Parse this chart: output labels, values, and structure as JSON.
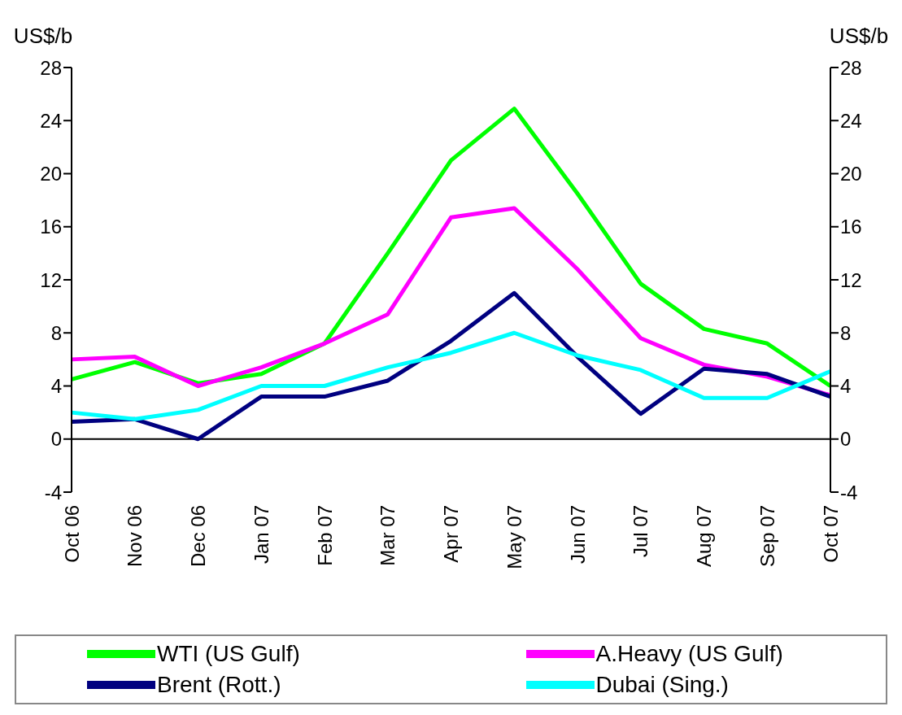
{
  "chart_data": {
    "type": "line",
    "ylabel": "US$/b",
    "y2label": "US$/b",
    "categories": [
      "Oct 06",
      "Nov 06",
      "Dec 06",
      "Jan 07",
      "Feb 07",
      "Mar 07",
      "Apr 07",
      "May 07",
      "Jun 07",
      "Jul 07",
      "Aug 07",
      "Sep 07",
      "Oct 07"
    ],
    "series": [
      {
        "name": "WTI (US Gulf)",
        "color": "#00ff00",
        "values": [
          4.5,
          5.8,
          4.2,
          4.9,
          7.2,
          14,
          21,
          24.9,
          18.5,
          11.7,
          8.3,
          7.2,
          4.0
        ]
      },
      {
        "name": "A.Heavy (US Gulf)",
        "color": "#ff00ff",
        "values": [
          6.0,
          6.2,
          4.0,
          5.4,
          7.2,
          9.4,
          16.7,
          17.4,
          12.8,
          7.6,
          5.6,
          4.7,
          3.3
        ]
      },
      {
        "name": "Brent (Rott.)",
        "color": "#000080",
        "values": [
          1.3,
          1.5,
          0,
          3.2,
          3.2,
          4.4,
          7.4,
          11.0,
          6.2,
          1.9,
          5.3,
          4.9,
          3.2
        ]
      },
      {
        "name": "Dubai (Sing.)",
        "color": "#00ffff",
        "values": [
          2.0,
          1.5,
          2.2,
          4.0,
          4.0,
          5.4,
          6.5,
          8.0,
          6.3,
          5.2,
          3.1,
          3.1,
          5.1
        ]
      }
    ],
    "ylim": [
      -4,
      28
    ],
    "yticks": [
      -4,
      0,
      4,
      8,
      12,
      16,
      20,
      24,
      28
    ],
    "y2lim": [
      -4,
      28
    ],
    "y2ticks": [
      -4,
      0,
      4,
      8,
      12,
      16,
      20,
      24,
      28
    ],
    "ref_lines": [
      {
        "axis": "y",
        "value": 0
      }
    ],
    "grid": false,
    "legend": "bottom",
    "marker": "none",
    "line_style": "solid"
  }
}
